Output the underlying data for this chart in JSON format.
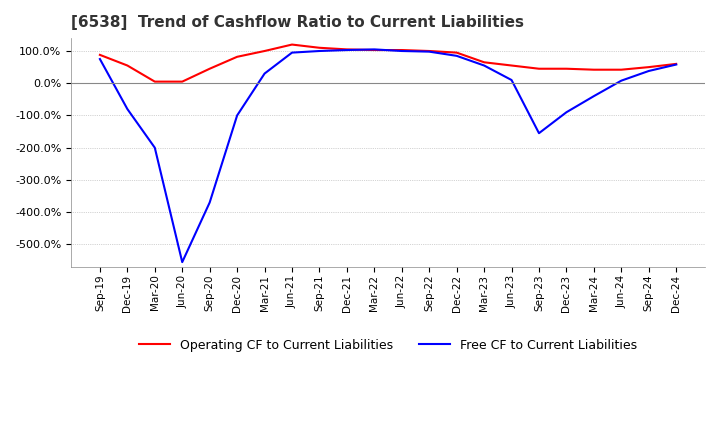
{
  "title": "[6538]  Trend of Cashflow Ratio to Current Liabilities",
  "x_labels": [
    "Sep-19",
    "Dec-19",
    "Mar-20",
    "Jun-20",
    "Sep-20",
    "Dec-20",
    "Mar-21",
    "Jun-21",
    "Sep-21",
    "Dec-21",
    "Mar-22",
    "Jun-22",
    "Sep-22",
    "Dec-22",
    "Mar-23",
    "Jun-23",
    "Sep-23",
    "Dec-23",
    "Mar-24",
    "Jun-24",
    "Sep-24",
    "Dec-24"
  ],
  "operating_cf": [
    88,
    55,
    5,
    5,
    45,
    82,
    100,
    120,
    110,
    105,
    103,
    103,
    100,
    95,
    65,
    55,
    45,
    45,
    42,
    42,
    50,
    60
  ],
  "free_cf": [
    75,
    -80,
    -200,
    -555,
    -370,
    -100,
    30,
    95,
    100,
    103,
    105,
    100,
    98,
    85,
    55,
    10,
    -155,
    -90,
    -40,
    8,
    38,
    58
  ],
  "operating_color": "#ff0000",
  "free_color": "#0000ff",
  "ylim": [
    -570,
    140
  ],
  "yticks": [
    100.0,
    0.0,
    -100.0,
    -200.0,
    -300.0,
    -400.0,
    -500.0
  ],
  "background_color": "#ffffff",
  "legend_labels": [
    "Operating CF to Current Liabilities",
    "Free CF to Current Liabilities"
  ]
}
